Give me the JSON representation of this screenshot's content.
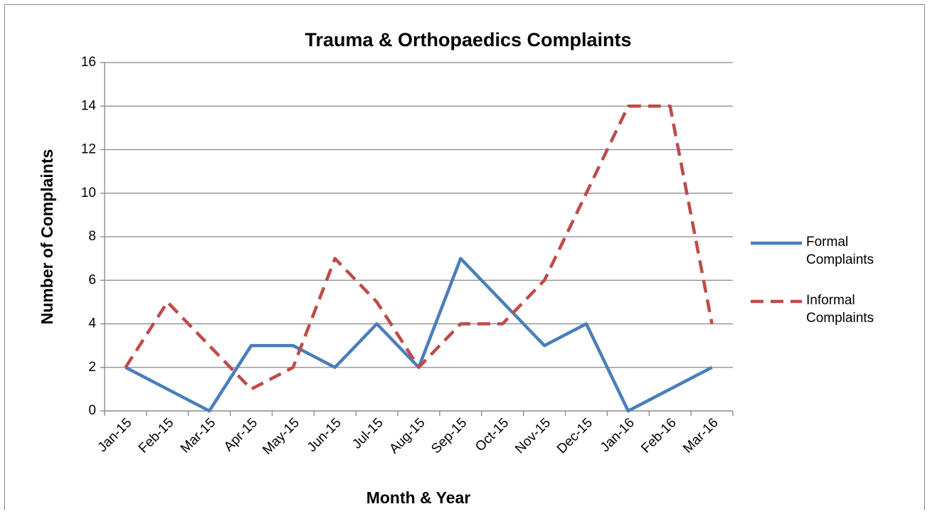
{
  "chart_data": {
    "type": "line",
    "title": "Trauma & Orthopaedics Complaints",
    "x_label": "Month & Year",
    "y_label": "Number of Complaints",
    "categories": [
      "Jan-15",
      "Feb-15",
      "Mar-15",
      "Apr-15",
      "May-15",
      "Jun-15",
      "Jul-15",
      "Aug-15",
      "Sep-15",
      "Oct-15",
      "Nov-15",
      "Dec-15",
      "Jan-16",
      "Feb-16",
      "Mar-16"
    ],
    "series": [
      {
        "name": "Formal Complaints",
        "color": "#4a7ebb",
        "dash": false,
        "values": [
          2,
          1,
          0,
          3,
          3,
          2,
          4,
          2,
          7,
          5,
          3,
          4,
          0,
          1,
          2
        ]
      },
      {
        "name": "Informal Complaints",
        "color": "#be4b48",
        "dash": true,
        "values": [
          2,
          5,
          3,
          1,
          2,
          7,
          5,
          2,
          4,
          4,
          6,
          10,
          14,
          14,
          4
        ]
      }
    ],
    "ylim": [
      0,
      16
    ],
    "yticks": [
      0,
      2,
      4,
      6,
      8,
      10,
      12,
      14,
      16
    ],
    "grid": true,
    "legend": "right"
  }
}
